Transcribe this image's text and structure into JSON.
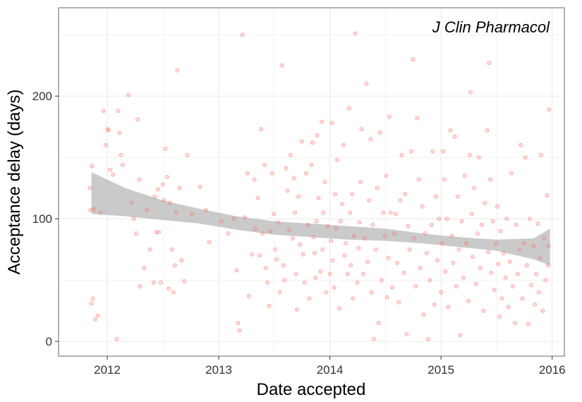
{
  "chart_data": {
    "type": "scatter",
    "title": "",
    "annotation": "J Clin Pharmacol",
    "xlabel": "Date accepted",
    "ylabel": "Acceptance delay (days)",
    "x_scale": "date",
    "xlim": [
      "2011-07-25",
      "2016-02-10"
    ],
    "ylim": [
      -12,
      272
    ],
    "x_ticks": [
      {
        "value": "2012-01-01",
        "label": "2012"
      },
      {
        "value": "2013-01-01",
        "label": "2013"
      },
      {
        "value": "2014-01-01",
        "label": "2014"
      },
      {
        "value": "2015-01-01",
        "label": "2015"
      },
      {
        "value": "2016-01-01",
        "label": "2016"
      }
    ],
    "y_ticks": [
      0,
      100,
      200
    ],
    "grid": true,
    "colors": {
      "points": "#f8766d",
      "smooth_band": "#bdbdbd",
      "panel_border": "#7f7f7f",
      "grid": "#ebebeb"
    },
    "smooth_band": {
      "x": [
        "2011-11-10",
        "2012-03-01",
        "2012-07-01",
        "2012-11-01",
        "2013-03-01",
        "2013-07-01",
        "2013-11-01",
        "2014-03-01",
        "2014-07-01",
        "2014-11-01",
        "2015-03-01",
        "2015-07-01",
        "2015-11-01",
        "2015-12-25"
      ],
      "lower": [
        104,
        102,
        99,
        96,
        91,
        87,
        85,
        83,
        82,
        80,
        77,
        74,
        67,
        62
      ],
      "upper": [
        138,
        125,
        115,
        108,
        102,
        98,
        96,
        94,
        92,
        88,
        85,
        83,
        84,
        92
      ]
    },
    "points": [
      [
        "2011-11-05",
        125
      ],
      [
        "2011-11-07",
        107
      ],
      [
        "2011-11-10",
        31
      ],
      [
        "2011-11-12",
        143
      ],
      [
        "2011-11-15",
        35
      ],
      [
        "2011-11-18",
        108
      ],
      [
        "2011-11-22",
        18
      ],
      [
        "2011-12-01",
        21
      ],
      [
        "2011-12-10",
        105
      ],
      [
        "2011-12-20",
        188
      ],
      [
        "2011-12-28",
        160
      ],
      [
        "2012-01-02",
        173
      ],
      [
        "2012-01-05",
        172
      ],
      [
        "2012-01-10",
        140
      ],
      [
        "2012-01-20",
        136
      ],
      [
        "2012-02-01",
        2
      ],
      [
        "2012-02-05",
        188
      ],
      [
        "2012-02-10",
        170
      ],
      [
        "2012-02-15",
        152
      ],
      [
        "2012-02-20",
        144
      ],
      [
        "2012-03-10",
        201
      ],
      [
        "2012-03-20",
        113
      ],
      [
        "2012-03-28",
        100
      ],
      [
        "2012-04-05",
        88
      ],
      [
        "2012-04-10",
        181
      ],
      [
        "2012-04-15",
        132
      ],
      [
        "2012-04-18",
        45
      ],
      [
        "2012-05-01",
        60
      ],
      [
        "2012-05-10",
        107
      ],
      [
        "2012-05-20",
        75
      ],
      [
        "2012-06-01",
        48
      ],
      [
        "2012-06-05",
        118
      ],
      [
        "2012-06-10",
        89
      ],
      [
        "2012-06-15",
        124
      ],
      [
        "2012-06-18",
        89
      ],
      [
        "2012-06-25",
        48
      ],
      [
        "2012-07-01",
        128
      ],
      [
        "2012-07-05",
        115
      ],
      [
        "2012-07-10",
        157
      ],
      [
        "2012-07-15",
        134
      ],
      [
        "2012-07-20",
        43
      ],
      [
        "2012-07-25",
        113
      ],
      [
        "2012-08-01",
        75
      ],
      [
        "2012-08-05",
        40
      ],
      [
        "2012-08-10",
        62
      ],
      [
        "2012-08-15",
        105
      ],
      [
        "2012-08-18",
        221
      ],
      [
        "2012-08-25",
        125
      ],
      [
        "2012-09-01",
        66
      ],
      [
        "2012-09-10",
        49
      ],
      [
        "2012-09-20",
        152
      ],
      [
        "2012-10-05",
        104
      ],
      [
        "2012-11-01",
        126
      ],
      [
        "2012-11-20",
        107
      ],
      [
        "2012-12-01",
        81
      ],
      [
        "2013-01-10",
        98
      ],
      [
        "2013-02-01",
        88
      ],
      [
        "2013-02-20",
        100
      ],
      [
        "2013-03-01",
        58
      ],
      [
        "2013-03-05",
        15
      ],
      [
        "2013-03-10",
        9
      ],
      [
        "2013-03-20",
        250
      ],
      [
        "2013-03-28",
        101
      ],
      [
        "2013-04-05",
        137
      ],
      [
        "2013-04-10",
        37
      ],
      [
        "2013-04-20",
        71
      ],
      [
        "2013-04-28",
        132
      ],
      [
        "2013-05-01",
        92
      ],
      [
        "2013-05-10",
        117
      ],
      [
        "2013-05-15",
        70
      ],
      [
        "2013-05-20",
        173
      ],
      [
        "2013-05-25",
        88
      ],
      [
        "2013-06-01",
        144
      ],
      [
        "2013-06-05",
        60
      ],
      [
        "2013-06-10",
        48
      ],
      [
        "2013-06-15",
        29
      ],
      [
        "2013-06-20",
        90
      ],
      [
        "2013-06-25",
        137
      ],
      [
        "2013-07-01",
        104
      ],
      [
        "2013-07-05",
        75
      ],
      [
        "2013-07-10",
        67
      ],
      [
        "2013-07-15",
        97
      ],
      [
        "2013-07-20",
        40
      ],
      [
        "2013-07-28",
        225
      ],
      [
        "2013-08-01",
        62
      ],
      [
        "2013-08-05",
        50
      ],
      [
        "2013-08-10",
        141
      ],
      [
        "2013-08-15",
        123
      ],
      [
        "2013-08-20",
        91
      ],
      [
        "2013-08-25",
        152
      ],
      [
        "2013-09-01",
        84
      ],
      [
        "2013-09-05",
        133
      ],
      [
        "2013-09-08",
        105
      ],
      [
        "2013-09-12",
        55
      ],
      [
        "2013-09-15",
        26
      ],
      [
        "2013-09-20",
        118
      ],
      [
        "2013-09-25",
        79
      ],
      [
        "2013-10-01",
        163
      ],
      [
        "2013-10-05",
        71
      ],
      [
        "2013-10-10",
        48
      ],
      [
        "2013-10-15",
        137
      ],
      [
        "2013-10-20",
        95
      ],
      [
        "2013-10-25",
        35
      ],
      [
        "2013-11-01",
        144
      ],
      [
        "2013-11-05",
        162
      ],
      [
        "2013-11-08",
        85
      ],
      [
        "2013-11-12",
        72
      ],
      [
        "2013-11-15",
        52
      ],
      [
        "2013-11-18",
        98
      ],
      [
        "2013-11-20",
        168
      ],
      [
        "2013-11-25",
        117
      ],
      [
        "2013-12-01",
        57
      ],
      [
        "2013-12-05",
        179
      ],
      [
        "2013-12-08",
        75
      ],
      [
        "2013-12-10",
        105
      ],
      [
        "2013-12-15",
        130
      ],
      [
        "2013-12-20",
        40
      ],
      [
        "2013-12-25",
        94
      ],
      [
        "2014-01-01",
        55
      ],
      [
        "2014-01-05",
        82
      ],
      [
        "2014-01-08",
        178
      ],
      [
        "2014-01-10",
        66
      ],
      [
        "2014-01-15",
        44
      ],
      [
        "2014-01-18",
        120
      ],
      [
        "2014-01-22",
        92
      ],
      [
        "2014-01-25",
        148
      ],
      [
        "2014-02-01",
        27
      ],
      [
        "2014-02-05",
        98
      ],
      [
        "2014-02-10",
        112
      ],
      [
        "2014-02-15",
        160
      ],
      [
        "2014-02-18",
        70
      ],
      [
        "2014-02-22",
        80
      ],
      [
        "2014-02-28",
        55
      ],
      [
        "2014-03-05",
        190
      ],
      [
        "2014-03-08",
        105
      ],
      [
        "2014-03-10",
        62
      ],
      [
        "2014-03-15",
        120
      ],
      [
        "2014-03-18",
        35
      ],
      [
        "2014-03-22",
        86
      ],
      [
        "2014-03-25",
        251
      ],
      [
        "2014-04-01",
        48
      ],
      [
        "2014-04-05",
        76
      ],
      [
        "2014-04-08",
        97
      ],
      [
        "2014-04-12",
        130
      ],
      [
        "2014-04-15",
        173
      ],
      [
        "2014-04-20",
        55
      ],
      [
        "2014-04-25",
        84
      ],
      [
        "2014-05-01",
        210
      ],
      [
        "2014-05-05",
        65
      ],
      [
        "2014-05-10",
        115
      ],
      [
        "2014-05-15",
        165
      ],
      [
        "2014-05-18",
        40
      ],
      [
        "2014-05-22",
        95
      ],
      [
        "2014-05-25",
        2
      ],
      [
        "2014-06-01",
        75
      ],
      [
        "2014-06-05",
        125
      ],
      [
        "2014-06-10",
        15
      ],
      [
        "2014-06-15",
        170
      ],
      [
        "2014-06-20",
        50
      ],
      [
        "2014-06-25",
        105
      ],
      [
        "2014-07-01",
        86
      ],
      [
        "2014-07-05",
        135
      ],
      [
        "2014-07-08",
        36
      ],
      [
        "2014-07-12",
        68
      ],
      [
        "2014-07-15",
        183
      ],
      [
        "2014-07-20",
        105
      ],
      [
        "2014-07-25",
        44
      ],
      [
        "2014-08-01",
        88
      ],
      [
        "2014-08-05",
        104
      ],
      [
        "2014-08-10",
        64
      ],
      [
        "2014-08-15",
        32
      ],
      [
        "2014-08-20",
        115
      ],
      [
        "2014-08-25",
        152
      ],
      [
        "2014-09-01",
        56
      ],
      [
        "2014-09-05",
        120
      ],
      [
        "2014-09-10",
        6
      ],
      [
        "2014-09-15",
        94
      ],
      [
        "2014-09-20",
        75
      ],
      [
        "2014-09-25",
        155
      ],
      [
        "2014-10-01",
        230
      ],
      [
        "2014-10-05",
        84
      ],
      [
        "2014-10-10",
        45
      ],
      [
        "2014-10-15",
        182
      ],
      [
        "2014-10-20",
        132
      ],
      [
        "2014-10-25",
        60
      ],
      [
        "2014-11-01",
        110
      ],
      [
        "2014-11-05",
        22
      ],
      [
        "2014-11-10",
        88
      ],
      [
        "2014-11-15",
        72
      ],
      [
        "2014-11-20",
        2
      ],
      [
        "2014-11-25",
        50
      ],
      [
        "2014-12-01",
        95
      ],
      [
        "2014-12-05",
        155
      ],
      [
        "2014-12-10",
        30
      ],
      [
        "2014-12-15",
        118
      ],
      [
        "2014-12-20",
        66
      ],
      [
        "2014-12-25",
        100
      ],
      [
        "2015-01-01",
        40
      ],
      [
        "2015-01-05",
        80
      ],
      [
        "2015-01-08",
        155
      ],
      [
        "2015-01-12",
        132
      ],
      [
        "2015-01-15",
        57
      ],
      [
        "2015-01-20",
        100
      ],
      [
        "2015-01-25",
        28
      ],
      [
        "2015-02-01",
        172
      ],
      [
        "2015-02-05",
        86
      ],
      [
        "2015-02-10",
        64
      ],
      [
        "2015-02-15",
        167
      ],
      [
        "2015-02-20",
        45
      ],
      [
        "2015-02-25",
        118
      ],
      [
        "2015-03-01",
        75
      ],
      [
        "2015-03-05",
        5
      ],
      [
        "2015-03-10",
        98
      ],
      [
        "2015-03-15",
        52
      ],
      [
        "2015-03-20",
        135
      ],
      [
        "2015-03-25",
        80
      ],
      [
        "2015-04-01",
        33
      ],
      [
        "2015-04-05",
        152
      ],
      [
        "2015-04-08",
        203
      ],
      [
        "2015-04-12",
        104
      ],
      [
        "2015-04-15",
        69
      ],
      [
        "2015-04-20",
        125
      ],
      [
        "2015-04-25",
        47
      ],
      [
        "2015-05-01",
        88
      ],
      [
        "2015-05-05",
        150
      ],
      [
        "2015-05-10",
        60
      ],
      [
        "2015-05-15",
        95
      ],
      [
        "2015-05-20",
        25
      ],
      [
        "2015-05-25",
        113
      ],
      [
        "2015-06-01",
        172
      ],
      [
        "2015-06-05",
        73
      ],
      [
        "2015-06-08",
        227
      ],
      [
        "2015-06-12",
        132
      ],
      [
        "2015-06-15",
        56
      ],
      [
        "2015-06-20",
        98
      ],
      [
        "2015-06-25",
        42
      ],
      [
        "2015-07-01",
        80
      ],
      [
        "2015-07-05",
        110
      ],
      [
        "2015-07-08",
        63
      ],
      [
        "2015-07-12",
        20
      ],
      [
        "2015-07-15",
        90
      ],
      [
        "2015-07-20",
        35
      ],
      [
        "2015-07-25",
        72
      ],
      [
        "2015-08-01",
        52
      ],
      [
        "2015-08-05",
        100
      ],
      [
        "2015-08-10",
        28
      ],
      [
        "2015-08-15",
        65
      ],
      [
        "2015-08-20",
        137
      ],
      [
        "2015-08-25",
        45
      ],
      [
        "2015-09-01",
        15
      ],
      [
        "2015-09-05",
        95
      ],
      [
        "2015-09-10",
        55
      ],
      [
        "2015-09-15",
        75
      ],
      [
        "2015-09-20",
        160
      ],
      [
        "2015-09-25",
        35
      ],
      [
        "2015-10-01",
        80
      ],
      [
        "2015-10-05",
        150
      ],
      [
        "2015-10-10",
        62
      ],
      [
        "2015-10-15",
        14
      ],
      [
        "2015-10-20",
        100
      ],
      [
        "2015-10-25",
        46
      ],
      [
        "2015-11-01",
        78
      ],
      [
        "2015-11-05",
        30
      ],
      [
        "2015-11-10",
        55
      ],
      [
        "2015-11-15",
        96
      ],
      [
        "2015-11-18",
        40
      ],
      [
        "2015-11-22",
        68
      ],
      [
        "2015-11-25",
        152
      ],
      [
        "2015-12-01",
        25
      ],
      [
        "2015-12-05",
        84
      ],
      [
        "2015-12-10",
        50
      ],
      [
        "2015-12-15",
        119
      ],
      [
        "2015-12-18",
        62
      ],
      [
        "2015-12-20",
        78
      ],
      [
        "2015-12-22",
        189
      ]
    ]
  }
}
